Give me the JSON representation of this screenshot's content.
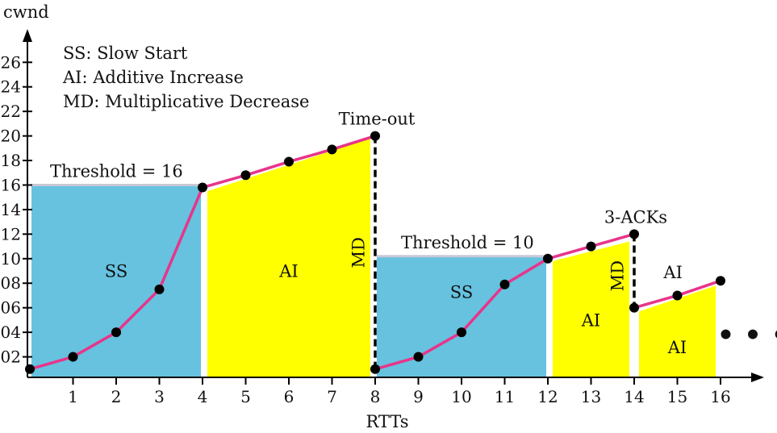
{
  "chart_data": {
    "type": "line",
    "xlabel": "RTTs",
    "ylabel": "cwnd",
    "xlim": [
      0,
      16
    ],
    "ylim": [
      0,
      26
    ],
    "x_ticks": [
      "1",
      "2",
      "3",
      "4",
      "5",
      "6",
      "7",
      "8",
      "9",
      "10",
      "11",
      "12",
      "13",
      "14",
      "15",
      "16"
    ],
    "y_ticks": [
      "02",
      "04",
      "06",
      "08",
      "10",
      "12",
      "14",
      "16",
      "18",
      "20",
      "22",
      "24",
      "26"
    ],
    "y_tick_values": [
      2,
      4,
      6,
      8,
      10,
      12,
      14,
      16,
      18,
      20,
      22,
      24,
      26
    ],
    "legend": [
      "SS: Slow Start",
      "AI: Additive Increase",
      "MD: Multiplicative Decrease"
    ],
    "series": [
      {
        "x": [
          0,
          1,
          2,
          3,
          4,
          5,
          6,
          7,
          8,
          8,
          9,
          10,
          11,
          12,
          13,
          14,
          14,
          15,
          16
        ],
        "y": [
          1,
          2,
          4,
          7.5,
          15.8,
          16.8,
          17.9,
          18.9,
          20,
          1,
          2,
          4,
          7.9,
          10,
          11,
          12,
          6,
          7,
          8.2
        ]
      }
    ],
    "threshold_lines": [
      {
        "label": "Threshold = 16",
        "value": 16,
        "x_range": [
          0,
          4
        ]
      },
      {
        "label": "Threshold = 10",
        "value": 10.2,
        "x_range": [
          8,
          12
        ]
      }
    ],
    "events": [
      {
        "label": "Time-out",
        "x": 8,
        "from": 20,
        "to": 1
      },
      {
        "label": "3-ACKs",
        "x": 14,
        "from": 12,
        "to": 6
      }
    ],
    "regions": [
      {
        "label": "SS",
        "phase": "slow-start",
        "x_range": [
          0,
          4
        ],
        "upper": 16,
        "label_at": [
          2,
          8.5
        ]
      },
      {
        "label": "AI",
        "phase": "additive",
        "x_range": [
          4,
          8
        ],
        "upper_start": 15.5,
        "upper_end": 19.8,
        "label_at": [
          6,
          8.5
        ]
      },
      {
        "label": "MD",
        "phase": "decrease",
        "x": 8,
        "label_at": [
          7.75,
          10.5
        ]
      },
      {
        "label": "SS",
        "phase": "slow-start",
        "x_range": [
          8,
          12
        ],
        "upper": 10.2,
        "label_at": [
          10,
          6.8
        ]
      },
      {
        "label": "AI",
        "phase": "additive",
        "x_range": [
          12,
          14
        ],
        "upper_start": 9.8,
        "upper_end": 11.4,
        "label_at": [
          13,
          4.5
        ]
      },
      {
        "label": "MD",
        "phase": "decrease",
        "x": 14,
        "label_at": [
          13.75,
          8.6
        ]
      },
      {
        "label": "AI",
        "phase": "additive",
        "x_range": [
          14,
          16
        ],
        "upper_start": 5.7,
        "upper_end": 7.8,
        "label_at": [
          15,
          2.3
        ]
      },
      {
        "label": "AI",
        "phase": "additive-top",
        "x": 15,
        "label_at": [
          14.9,
          8.4
        ]
      }
    ],
    "continuation": "• • •",
    "colors": {
      "slow_start": "#66c2df",
      "additive": "#ffff00",
      "line": "#e8348a",
      "point": "#000000",
      "threshold": "#c8c8d8",
      "axis": "#000000"
    },
    "grid": false
  }
}
